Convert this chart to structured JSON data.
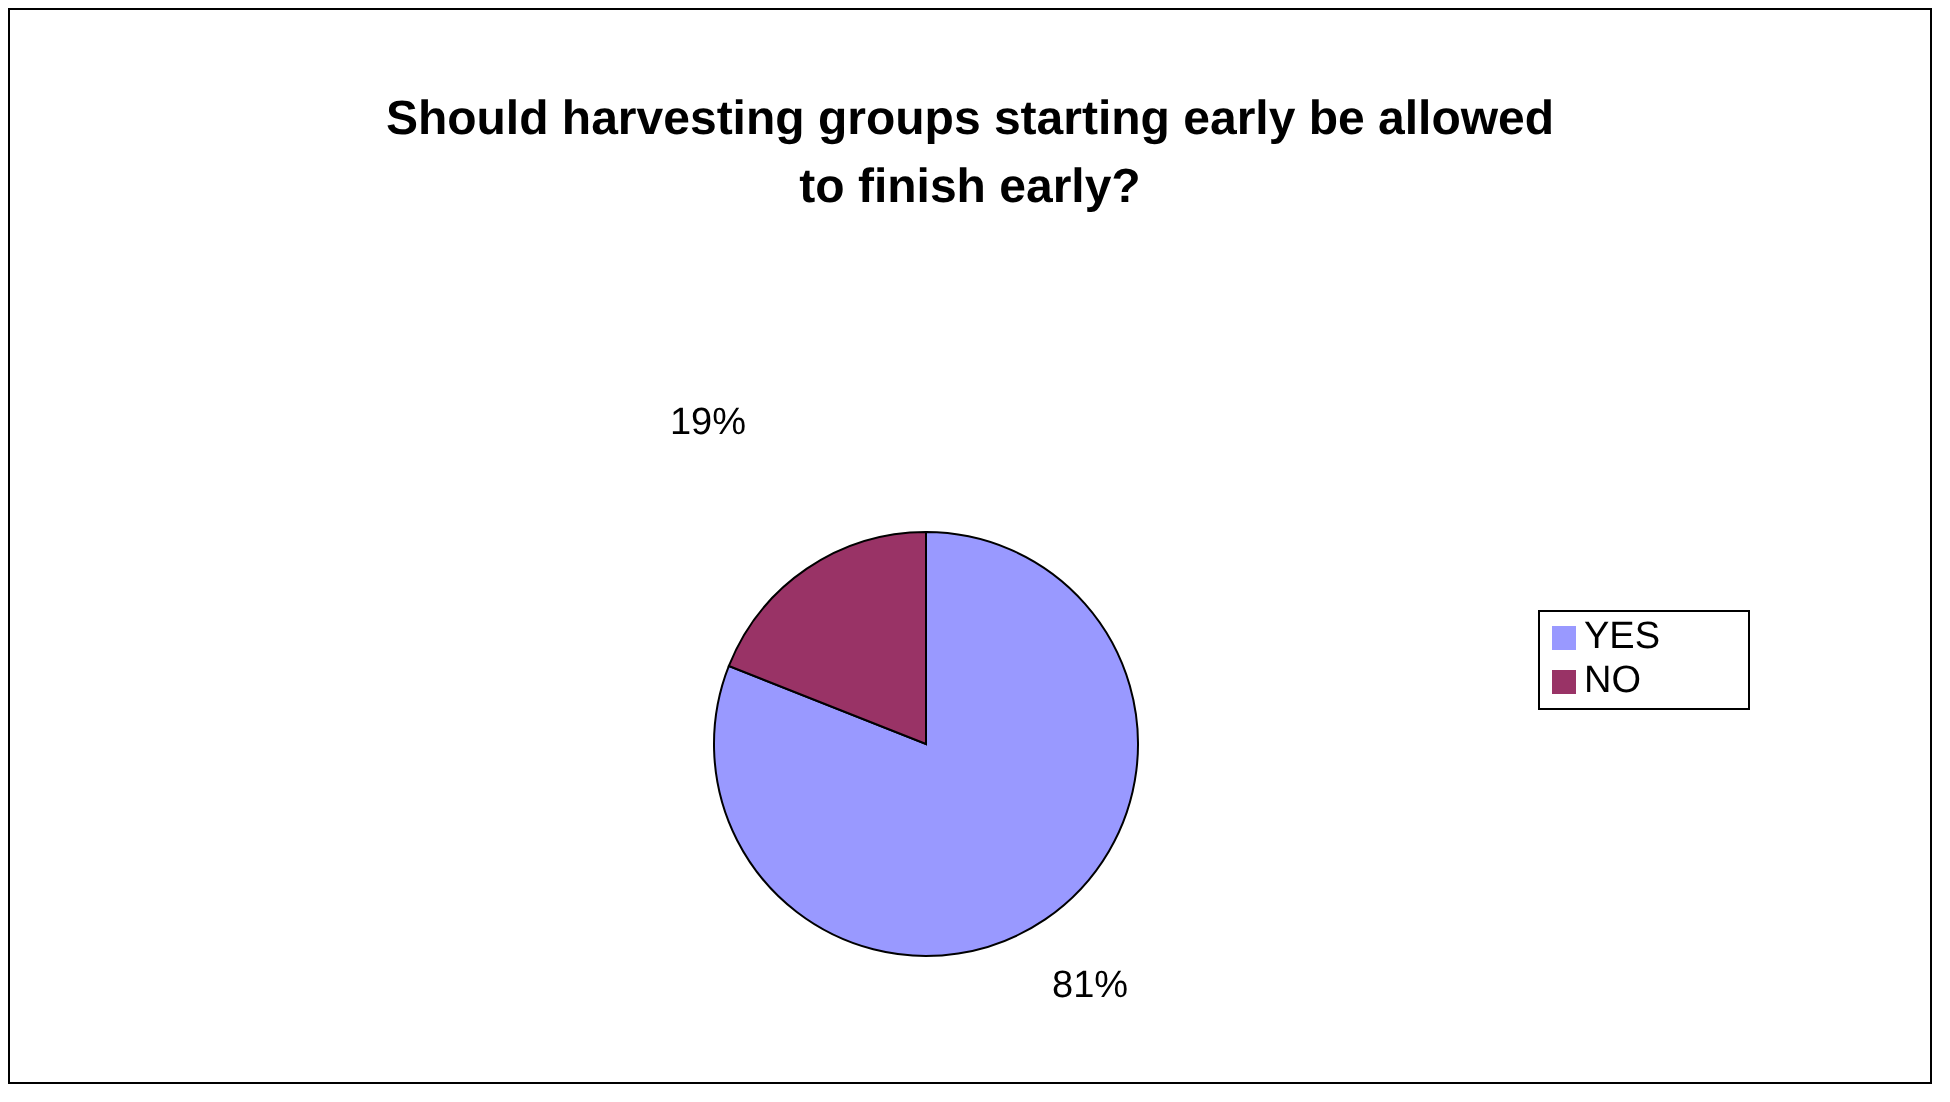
{
  "chart_data": {
    "type": "pie",
    "title": "Should harvesting groups starting early be allowed to finish early?",
    "categories": [
      "YES",
      "NO"
    ],
    "values": [
      81,
      19
    ],
    "colors": [
      "#9999ff",
      "#993366"
    ],
    "value_labels": [
      "81%",
      "19%"
    ],
    "legend": "right"
  }
}
